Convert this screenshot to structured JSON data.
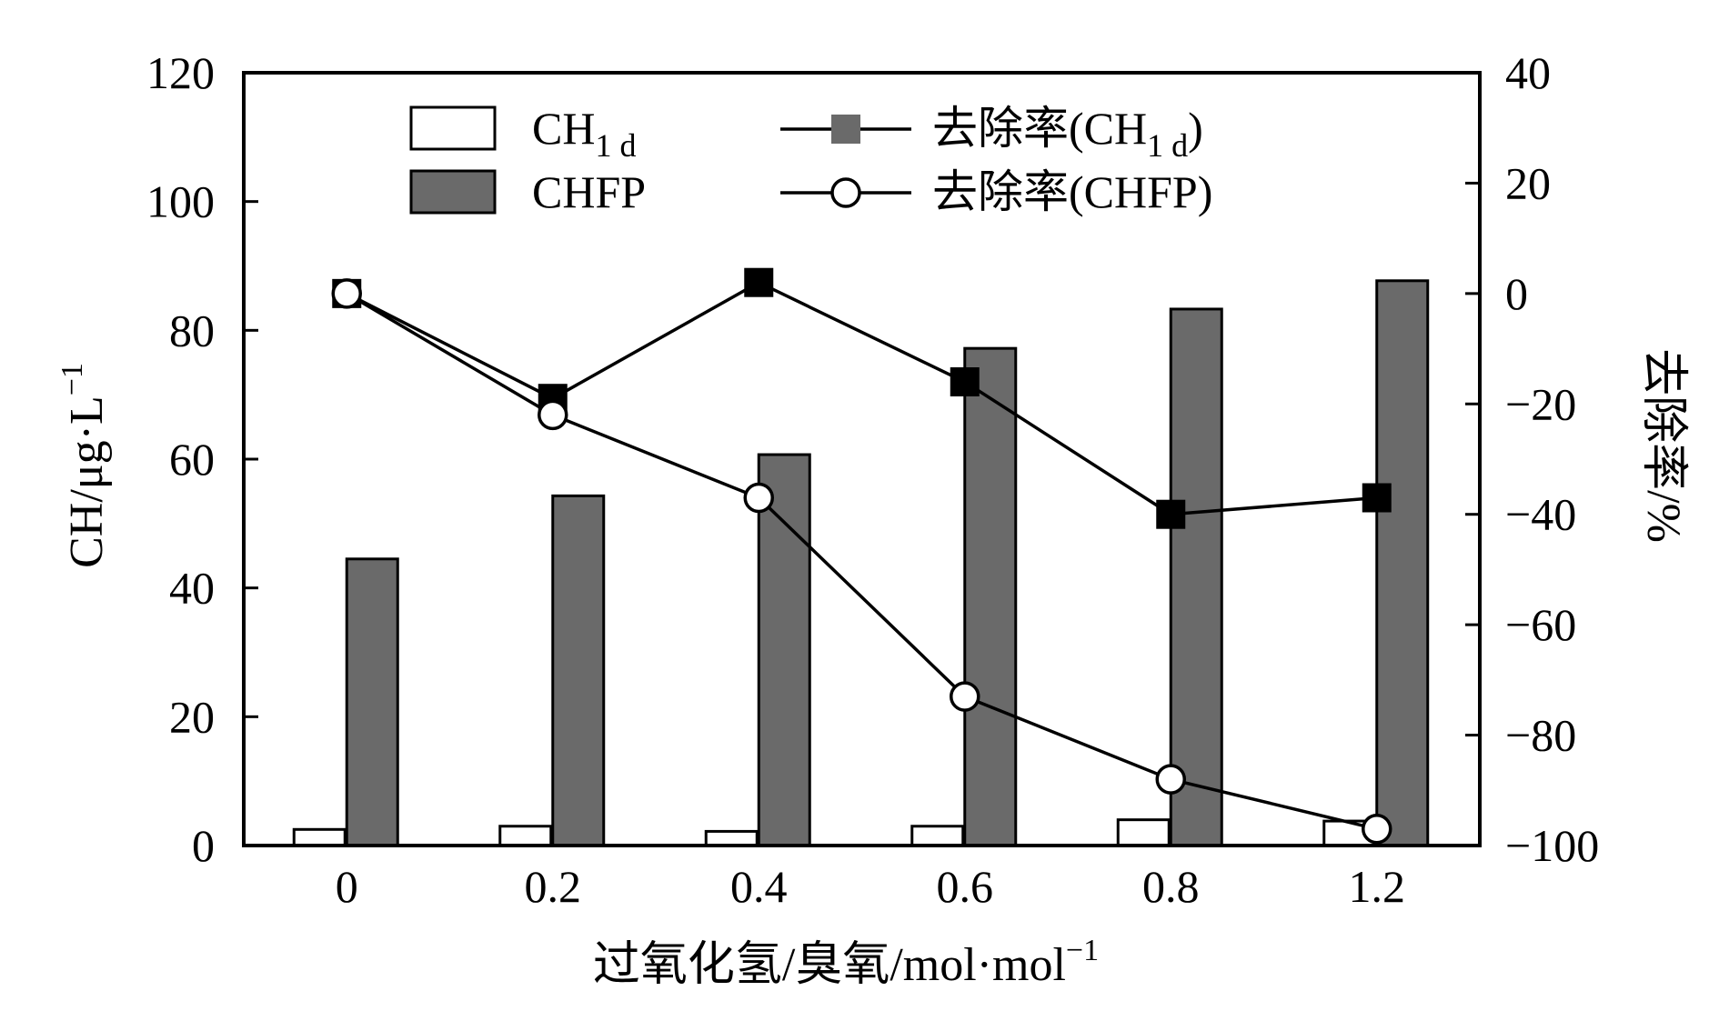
{
  "chart_data": {
    "type": "bar",
    "categories": [
      "0",
      "0.2",
      "0.4",
      "0.6",
      "0.8",
      "1.2"
    ],
    "series": [
      {
        "name": "CH1 d",
        "kind": "bar",
        "axis": "left",
        "color": "#ffffff",
        "values": [
          2.5,
          3.0,
          2.2,
          3.0,
          4.0,
          3.8
        ]
      },
      {
        "name": "CHFP",
        "kind": "bar",
        "axis": "left",
        "color": "#6a6a6a",
        "values": [
          44.5,
          54.3,
          60.7,
          77.2,
          83.3,
          87.7
        ]
      },
      {
        "name": "去除率(CH1 d)",
        "kind": "line",
        "axis": "right",
        "marker": "filled-square",
        "color": "#000000",
        "values": [
          0,
          -19,
          2,
          -16,
          -40,
          -37
        ]
      },
      {
        "name": "去除率(CHFP)",
        "kind": "line",
        "axis": "right",
        "marker": "open-circle",
        "color": "#000000",
        "values": [
          0,
          -22,
          -37,
          -73,
          -88,
          -97
        ]
      }
    ],
    "xlabel": "过氧化氢/臭氧/mol·mol",
    "xlabel_sup": "−1",
    "ylabel_left": "CH/μg·L",
    "ylabel_left_sup": "−1",
    "ylabel_right": "去除率/%",
    "ylim_left": [
      0,
      120
    ],
    "ylim_right": [
      -100,
      40
    ],
    "yticks_left": [
      "0",
      "20",
      "40",
      "60",
      "80",
      "100",
      "120"
    ],
    "yticks_right": [
      "−100",
      "−80",
      "−60",
      "−40",
      "−20",
      "0",
      "20",
      "40"
    ],
    "grid": false,
    "legend": {
      "placement": "top",
      "items": [
        {
          "base": "CH",
          "sub": "1 d",
          "prefix": "",
          "suffix": "",
          "kind": "bar-white"
        },
        {
          "base": "CHFP",
          "sub": "",
          "prefix": "",
          "suffix": "",
          "kind": "bar-gray"
        },
        {
          "base": "去除率(CH",
          "sub": "1 d",
          "suffix": ")",
          "kind": "line-square"
        },
        {
          "base": "去除率(CHFP)",
          "sub": "",
          "suffix": "",
          "kind": "line-circle"
        }
      ]
    }
  }
}
